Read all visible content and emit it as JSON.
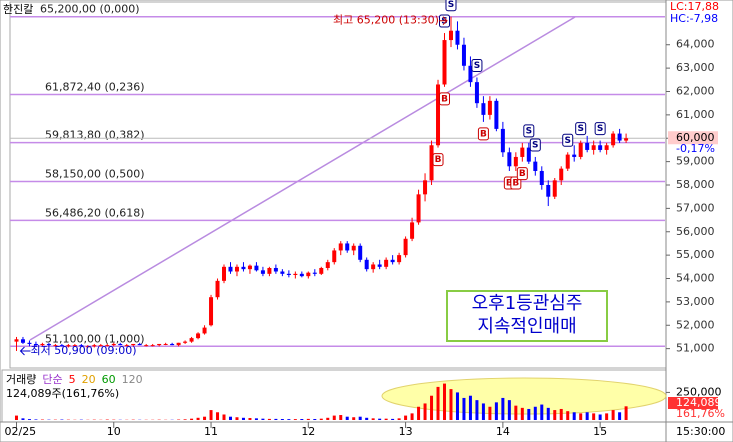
{
  "chart_data": {
    "type": "candlestick",
    "title": "한진칼",
    "lc_label": "LC:17,88",
    "hc_label": "HC:-7,98",
    "high_note": "최고 65,200 (13:30)",
    "high_index": 67,
    "low_note": "최저 50,900 (09:00)",
    "low_index": 0,
    "memo": [
      "오후1등관심주",
      "지속적인매매"
    ],
    "xlim": [
      -1,
      100
    ],
    "xticks": [
      {
        "value": 0,
        "label": "02/25"
      },
      {
        "value": 15,
        "label": "10"
      },
      {
        "value": 30,
        "label": "11"
      },
      {
        "value": 45,
        "label": "12"
      },
      {
        "value": 60,
        "label": "13"
      },
      {
        "value": 75,
        "label": "14"
      },
      {
        "value": 90,
        "label": "15"
      }
    ],
    "time_label": "15:30:00",
    "ylim": [
      50300,
      65700
    ],
    "yticks": [
      {
        "value": 51000,
        "label": "51,000"
      },
      {
        "value": 52000,
        "label": "52,000"
      },
      {
        "value": 53000,
        "label": "53,000"
      },
      {
        "value": 54000,
        "label": "54,000"
      },
      {
        "value": 55000,
        "label": "55,000"
      },
      {
        "value": 56000,
        "label": "56,000"
      },
      {
        "value": 57000,
        "label": "57,000"
      },
      {
        "value": 58000,
        "label": "58,000"
      },
      {
        "value": 59000,
        "label": "59,000"
      },
      {
        "value": 60000,
        "label": "60,000"
      },
      {
        "value": 61000,
        "label": "61,000"
      },
      {
        "value": 62000,
        "label": "62,000"
      },
      {
        "value": 63000,
        "label": "63,000"
      },
      {
        "value": 64000,
        "label": "64,000"
      }
    ],
    "fib_levels": [
      {
        "value": 65200,
        "label": "65,200,00 (0,000)"
      },
      {
        "value": 61872.4,
        "label": "61,872,40 (0,236)"
      },
      {
        "value": 59813.8,
        "label": "59,813,80 (0,382)"
      },
      {
        "value": 58150,
        "label": "58,150,00 (0,500)"
      },
      {
        "value": 56486.2,
        "label": "56,486,20 (0,618)"
      },
      {
        "value": 51100,
        "label": "51,100,00 (1,000)"
      }
    ],
    "current": {
      "value": 60000,
      "label": "60,000",
      "change": "-0,17%"
    },
    "up_color": "#ff0000",
    "down_color": "#0000ff",
    "fib_color": "#c58be8",
    "candles": [
      [
        51300,
        51500,
        50900,
        51400
      ],
      [
        51400,
        51500,
        51200,
        51250
      ],
      [
        51250,
        51350,
        51100,
        51200
      ],
      [
        51200,
        51300,
        51100,
        51150
      ],
      [
        51150,
        51250,
        51100,
        51200
      ],
      [
        51200,
        51250,
        51100,
        51150
      ],
      [
        51150,
        51200,
        51100,
        51150
      ],
      [
        51150,
        51200,
        51100,
        51100
      ],
      [
        51100,
        51200,
        51050,
        51150
      ],
      [
        51150,
        51200,
        51100,
        51150
      ],
      [
        51150,
        51200,
        51100,
        51100
      ],
      [
        51100,
        51150,
        51050,
        51100
      ],
      [
        51100,
        51200,
        51050,
        51150
      ],
      [
        51150,
        51200,
        51100,
        51150
      ],
      [
        51150,
        51200,
        51100,
        51150
      ],
      [
        51150,
        51250,
        51100,
        51200
      ],
      [
        51200,
        51250,
        51150,
        51150
      ],
      [
        51150,
        51200,
        51100,
        51150
      ],
      [
        51150,
        51200,
        51100,
        51200
      ],
      [
        51200,
        51250,
        51150,
        51150
      ],
      [
        51150,
        51200,
        51100,
        51150
      ],
      [
        51150,
        51200,
        51100,
        51150
      ],
      [
        51150,
        51200,
        51100,
        51200
      ],
      [
        51200,
        51250,
        51150,
        51200
      ],
      [
        51200,
        51250,
        51150,
        51150
      ],
      [
        51150,
        51250,
        51100,
        51250
      ],
      [
        51250,
        51350,
        51200,
        51300
      ],
      [
        51300,
        51500,
        51250,
        51450
      ],
      [
        51450,
        51700,
        51400,
        51650
      ],
      [
        51650,
        52000,
        51600,
        51900
      ],
      [
        52000,
        53300,
        51950,
        53200
      ],
      [
        53200,
        54000,
        53100,
        53900
      ],
      [
        53900,
        54600,
        53800,
        54500
      ],
      [
        54500,
        54700,
        54200,
        54300
      ],
      [
        54300,
        54600,
        54100,
        54500
      ],
      [
        54500,
        54700,
        54300,
        54400
      ],
      [
        54400,
        54600,
        54200,
        54550
      ],
      [
        54550,
        54700,
        54300,
        54350
      ],
      [
        54350,
        54500,
        54100,
        54200
      ],
      [
        54200,
        54500,
        54100,
        54450
      ],
      [
        54450,
        54600,
        54200,
        54300
      ],
      [
        54300,
        54400,
        54100,
        54200
      ],
      [
        54200,
        54350,
        54050,
        54150
      ],
      [
        54150,
        54300,
        54000,
        54200
      ],
      [
        54200,
        54300,
        54050,
        54100
      ],
      [
        54100,
        54300,
        54000,
        54250
      ],
      [
        54250,
        54400,
        54100,
        54200
      ],
      [
        54200,
        54500,
        54150,
        54450
      ],
      [
        54450,
        54800,
        54350,
        54700
      ],
      [
        54700,
        55300,
        54600,
        55200
      ],
      [
        55200,
        55600,
        55000,
        55500
      ],
      [
        55500,
        55600,
        55100,
        55200
      ],
      [
        55200,
        55500,
        55000,
        55400
      ],
      [
        55400,
        55500,
        54700,
        54800
      ],
      [
        54800,
        54900,
        54300,
        54400
      ],
      [
        54400,
        54700,
        54250,
        54600
      ],
      [
        54600,
        54800,
        54400,
        54500
      ],
      [
        54500,
        54900,
        54400,
        54800
      ],
      [
        54800,
        55000,
        54600,
        54700
      ],
      [
        54700,
        55100,
        54600,
        55000
      ],
      [
        55000,
        55800,
        54900,
        55700
      ],
      [
        55700,
        56600,
        55600,
        56400
      ],
      [
        56400,
        57800,
        56300,
        57600
      ],
      [
        57600,
        58500,
        57300,
        58200
      ],
      [
        58200,
        59900,
        58000,
        59700
      ],
      [
        59700,
        62500,
        59600,
        62300
      ],
      [
        62300,
        64500,
        62200,
        64200
      ],
      [
        64200,
        65200,
        63900,
        64600
      ],
      [
        64600,
        65000,
        63800,
        64000
      ],
      [
        64000,
        64300,
        62900,
        63100
      ],
      [
        63100,
        63500,
        62200,
        62400
      ],
      [
        62400,
        62600,
        61300,
        61500
      ],
      [
        61500,
        61800,
        60700,
        61000
      ],
      [
        61000,
        61800,
        60800,
        61600
      ],
      [
        61600,
        61700,
        60300,
        60400
      ],
      [
        60400,
        60700,
        59200,
        59400
      ],
      [
        59400,
        59600,
        58600,
        58800
      ],
      [
        58800,
        59400,
        58600,
        59200
      ],
      [
        59200,
        59800,
        59000,
        59600
      ],
      [
        59600,
        59800,
        58900,
        59000
      ],
      [
        59000,
        59200,
        58400,
        58600
      ],
      [
        58600,
        58800,
        57800,
        58000
      ],
      [
        58000,
        58200,
        57100,
        57500
      ],
      [
        57500,
        58300,
        57400,
        58200
      ],
      [
        58200,
        58800,
        58000,
        58700
      ],
      [
        58700,
        59400,
        58600,
        59300
      ],
      [
        59300,
        59700,
        59000,
        59200
      ],
      [
        59200,
        59900,
        59100,
        59800
      ],
      [
        59800,
        60100,
        59400,
        59500
      ],
      [
        59500,
        59900,
        59300,
        59700
      ],
      [
        59700,
        59900,
        59400,
        59500
      ],
      [
        59500,
        59800,
        59300,
        59700
      ],
      [
        59700,
        60300,
        59600,
        60200
      ],
      [
        60200,
        60400,
        59800,
        59900
      ],
      [
        59900,
        60200,
        59800,
        60000
      ]
    ],
    "signals": [
      {
        "index": 65,
        "label": "B"
      },
      {
        "index": 66,
        "label": "B"
      },
      {
        "index": 66,
        "label": "S"
      },
      {
        "index": 67,
        "label": "S"
      },
      {
        "index": 71,
        "label": "S"
      },
      {
        "index": 72,
        "label": "B"
      },
      {
        "index": 76,
        "label": "B"
      },
      {
        "index": 77,
        "label": "B"
      },
      {
        "index": 78,
        "label": "B"
      },
      {
        "index": 79,
        "label": "S"
      },
      {
        "index": 80,
        "label": "S"
      },
      {
        "index": 85,
        "label": "S"
      },
      {
        "index": 87,
        "label": "S"
      },
      {
        "index": 90,
        "label": "S"
      }
    ],
    "volume": {
      "legend": [
        "거래량",
        "단순",
        "5",
        "20",
        "60",
        "120"
      ],
      "legend_colors": [
        "#000000",
        "#9933cc",
        "#ff0000",
        "#e0a000",
        "#009900",
        "#888888"
      ],
      "summary": "124,089주(161,76%)",
      "last_label": "124,089",
      "ratio_label": "161,76%",
      "ylim": [
        0,
        435000
      ],
      "yticks": [
        {
          "value": 250000,
          "label": "250,000"
        }
      ],
      "values": [
        40000,
        15000,
        8000,
        5000,
        4000,
        3000,
        3000,
        4000,
        3000,
        2000,
        3000,
        2000,
        3000,
        2000,
        4000,
        3000,
        2000,
        2000,
        3000,
        2000,
        2000,
        2000,
        3000,
        2000,
        2000,
        4000,
        6000,
        12000,
        20000,
        30000,
        90000,
        70000,
        50000,
        30000,
        25000,
        20000,
        18000,
        15000,
        12000,
        10000,
        10000,
        9000,
        8000,
        8000,
        9000,
        10000,
        9000,
        12000,
        20000,
        40000,
        45000,
        30000,
        25000,
        30000,
        20000,
        15000,
        12000,
        12000,
        10000,
        15000,
        40000,
        60000,
        120000,
        150000,
        220000,
        300000,
        330000,
        280000,
        250000,
        200000,
        220000,
        180000,
        150000,
        120000,
        160000,
        200000,
        180000,
        130000,
        110000,
        100000,
        120000,
        140000,
        110000,
        90000,
        100000,
        80000,
        70000,
        60000,
        70000,
        60000,
        50000,
        60000,
        90000,
        70000,
        124089
      ]
    }
  }
}
